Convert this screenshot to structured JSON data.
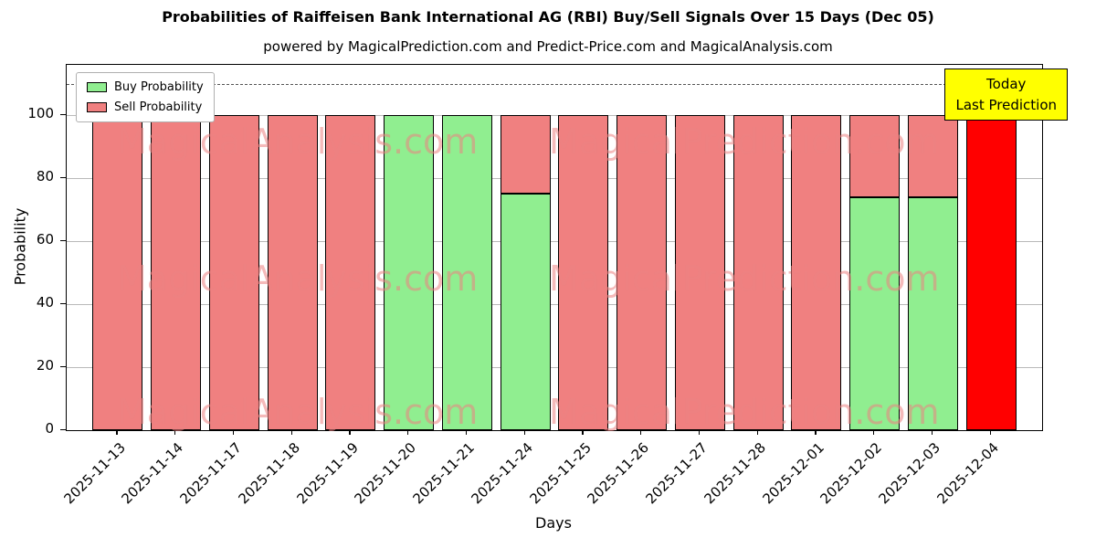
{
  "title": "Probabilities of Raiffeisen Bank International AG (RBI) Buy/Sell Signals Over 15 Days (Dec 05)",
  "subtitle": "powered by MagicalPrediction.com and Predict-Price.com and MagicalAnalysis.com",
  "legend": {
    "items": [
      {
        "label": "Buy Probability",
        "color": "#90ee90"
      },
      {
        "label": "Sell Probability",
        "color": "#f08080"
      }
    ]
  },
  "annotation": {
    "line1": "Today",
    "line2": "Last Prediction",
    "bg": "#ffff00"
  },
  "watermark": {
    "texts": [
      "MagicalAnalysis.com",
      "MagicalPrediction.com"
    ]
  },
  "chart_data": {
    "type": "bar",
    "stacked": true,
    "title": "Probabilities of Raiffeisen Bank International AG (RBI) Buy/Sell Signals Over 15 Days (Dec 05)",
    "xlabel": "Days",
    "ylabel": "Probability",
    "ylim": [
      0,
      116
    ],
    "yticks": [
      0,
      20,
      40,
      60,
      80,
      100
    ],
    "dashed_line_y": 110,
    "grid": "horizontal",
    "legend_position": "upper-left",
    "today_color": "#ff0000",
    "categories": [
      "2025-11-13",
      "2025-11-14",
      "2025-11-17",
      "2025-11-18",
      "2025-11-19",
      "2025-11-20",
      "2025-11-21",
      "2025-11-24",
      "2025-11-25",
      "2025-11-26",
      "2025-11-27",
      "2025-11-28",
      "2025-12-01",
      "2025-12-02",
      "2025-12-03",
      "2025-12-04"
    ],
    "series": [
      {
        "name": "Buy Probability",
        "color": "#90ee90",
        "values": [
          0,
          0,
          0,
          0,
          0,
          100,
          100,
          75,
          0,
          0,
          0,
          0,
          0,
          74,
          74,
          0
        ]
      },
      {
        "name": "Sell Probability",
        "color": "#f08080",
        "values": [
          100,
          100,
          100,
          100,
          100,
          0,
          0,
          25,
          100,
          100,
          100,
          100,
          100,
          26,
          26,
          100
        ]
      }
    ]
  }
}
